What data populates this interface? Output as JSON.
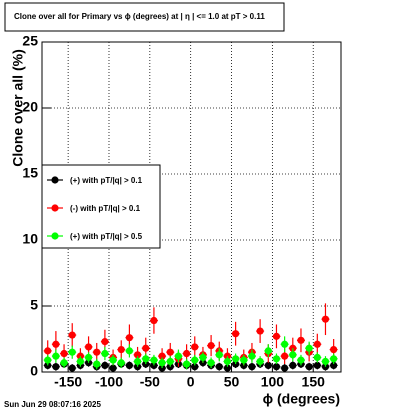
{
  "chart_data": {
    "type": "errorscatter",
    "title": "Clone  over all for Primary vs ϕ (degrees) at |  η  | <= 1.0 at pT > 0.11",
    "xlabel": "ϕ (degrees)",
    "ylabel": "Clone  over all (%)",
    "timestamp": "Sun Jun 29 08:07:16 2025",
    "xlim": [
      -182,
      184
    ],
    "ylim": [
      0,
      25
    ],
    "xticks": [
      -150,
      -100,
      -50,
      0,
      50,
      100,
      150
    ],
    "yticks": [
      0,
      5,
      10,
      15,
      20,
      25
    ],
    "grid": true,
    "x": [
      -175,
      -165,
      -155,
      -145,
      -135,
      -125,
      -115,
      -105,
      -95,
      -85,
      -75,
      -65,
      -55,
      -45,
      -35,
      -25,
      -15,
      -5,
      5,
      15,
      25,
      35,
      45,
      55,
      65,
      75,
      85,
      95,
      105,
      115,
      125,
      135,
      145,
      155,
      165,
      175
    ],
    "series": [
      {
        "name": "(+) with pT/|q| > 0.1",
        "color": "#000000",
        "values": [
          0.5,
          0.4,
          0.6,
          0.3,
          0.5,
          0.7,
          0.4,
          0.5,
          0.3,
          0.6,
          0.5,
          0.4,
          0.6,
          0.5,
          0.3,
          0.4,
          0.6,
          0.5,
          0.4,
          0.7,
          0.5,
          0.4,
          0.3,
          0.6,
          0.5,
          0.4,
          0.6,
          0.5,
          0.4,
          0.3,
          0.5,
          0.6,
          0.4,
          0.5,
          0.4,
          0.5
        ],
        "errors": [
          0.3,
          0.3,
          0.3,
          0.3,
          0.3,
          0.3,
          0.3,
          0.3,
          0.3,
          0.3,
          0.3,
          0.3,
          0.3,
          0.3,
          0.3,
          0.3,
          0.3,
          0.3,
          0.3,
          0.3,
          0.3,
          0.3,
          0.3,
          0.3,
          0.3,
          0.3,
          0.3,
          0.3,
          0.3,
          0.3,
          0.3,
          0.3,
          0.3,
          0.3,
          0.3,
          0.3
        ]
      },
      {
        "name": "(-) with pT/|q| > 0.1",
        "color": "#ff0000",
        "values": [
          1.6,
          2.1,
          1.4,
          2.8,
          1.2,
          1.9,
          1.5,
          2.3,
          1.1,
          1.7,
          2.6,
          1.3,
          1.8,
          3.9,
          1.2,
          1.5,
          1.0,
          1.4,
          1.9,
          1.3,
          2.0,
          1.6,
          1.2,
          2.9,
          1.1,
          1.5,
          3.1,
          1.4,
          2.7,
          1.2,
          1.8,
          2.4,
          1.5,
          2.1,
          4.0,
          1.7
        ],
        "errors": [
          0.8,
          1.0,
          0.7,
          0.9,
          0.6,
          0.8,
          0.7,
          0.9,
          0.6,
          0.7,
          1.0,
          0.6,
          0.8,
          1.0,
          0.6,
          0.7,
          0.6,
          0.7,
          0.8,
          0.6,
          0.8,
          0.7,
          0.6,
          0.9,
          0.6,
          0.7,
          0.9,
          0.7,
          0.9,
          0.6,
          0.8,
          0.9,
          0.7,
          0.8,
          1.2,
          0.8
        ]
      },
      {
        "name": "(+) with pT/|q| > 0.5",
        "color": "#00ff00",
        "values": [
          0.9,
          1.2,
          0.7,
          1.5,
          0.8,
          1.1,
          0.6,
          1.4,
          0.9,
          0.7,
          1.6,
          0.8,
          1.0,
          0.9,
          0.7,
          0.8,
          1.2,
          0.6,
          0.9,
          1.1,
          0.7,
          1.3,
          0.8,
          1.0,
          0.9,
          1.2,
          0.8,
          1.6,
          1.0,
          2.1,
          1.3,
          0.9,
          1.8,
          1.1,
          0.8,
          1.0
        ],
        "errors": [
          0.4,
          0.5,
          0.4,
          0.5,
          0.4,
          0.4,
          0.4,
          0.5,
          0.4,
          0.4,
          0.5,
          0.4,
          0.4,
          0.4,
          0.4,
          0.4,
          0.5,
          0.4,
          0.4,
          0.4,
          0.4,
          0.5,
          0.4,
          0.4,
          0.4,
          0.5,
          0.4,
          0.5,
          0.4,
          0.6,
          0.5,
          0.4,
          0.5,
          0.4,
          0.4,
          0.4
        ]
      }
    ]
  }
}
